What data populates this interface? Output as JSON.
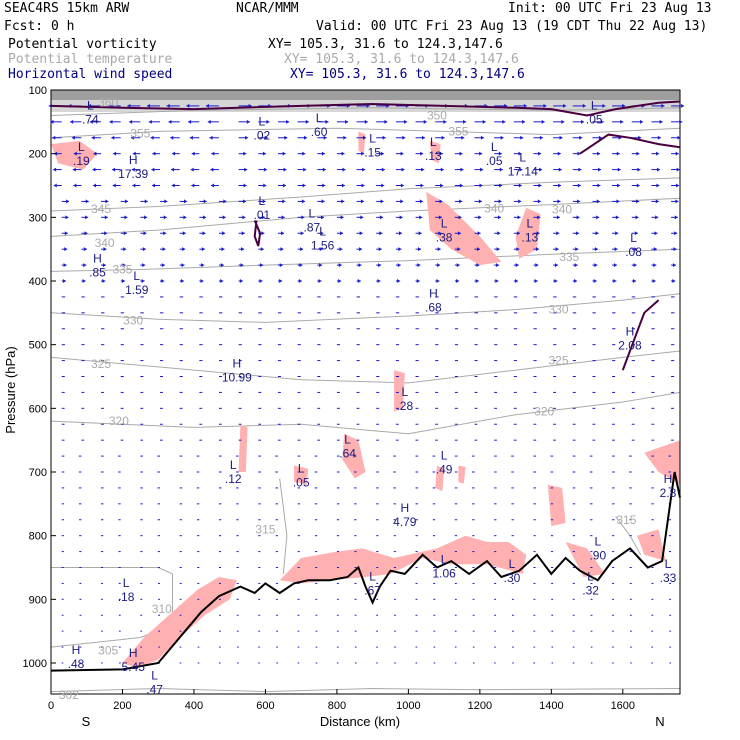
{
  "header": {
    "model": "SEAC4RS 15km ARW",
    "org": "NCAR/MMM",
    "init": "Init: 00 UTC Fri 23 Aug 13",
    "fcst": "Fcst:    0 h",
    "valid": "Valid: 00 UTC Fri 23 Aug 13 (19 CDT Thu 22 Aug 13)",
    "fields": [
      {
        "name": "Potential vorticity",
        "xy": "XY= 105.3, 31.6 to 124.3,147.6",
        "color": "#000000"
      },
      {
        "name": "Potential temperature",
        "xy": "XY= 105.3, 31.6 to 124.3,147.6",
        "color": "#aaaaaa"
      },
      {
        "name": "Horizontal wind speed",
        "xy": "XY= 105.3, 31.6 to 124.3,147.6",
        "color": "#000080"
      }
    ]
  },
  "colors": {
    "pv": "#4a0040",
    "theta": "#aaaaaa",
    "wind": "#1a1acc",
    "fill": "#ffb0b0",
    "terrain": "#000000",
    "label": "#1a1a80"
  },
  "chart_data": {
    "type": "cross-section",
    "xlabel": "Distance (km)",
    "ylabel": "Pressure (hPa)",
    "xlim": [
      0,
      1760
    ],
    "ylim": [
      1050,
      100
    ],
    "xticks": [
      0,
      200,
      400,
      600,
      800,
      1000,
      1200,
      1400,
      1600
    ],
    "yticks": [
      100,
      200,
      300,
      400,
      500,
      600,
      700,
      800,
      900,
      1000
    ],
    "endpoints": {
      "left": "S",
      "right": "N"
    },
    "grid": false,
    "theta_contours": [
      {
        "label": "355",
        "x": 250,
        "p": 168
      },
      {
        "label": "355",
        "x": 1140,
        "p": 165
      },
      {
        "label": "350",
        "x": 1080,
        "p": 140
      },
      {
        "label": "345",
        "x": 140,
        "p": 287
      },
      {
        "label": "340",
        "x": 1240,
        "p": 286
      },
      {
        "label": "340",
        "x": 1430,
        "p": 288
      },
      {
        "label": "335",
        "x": 200,
        "p": 382
      },
      {
        "label": "335",
        "x": 1450,
        "p": 362
      },
      {
        "label": "330",
        "x": 230,
        "p": 462
      },
      {
        "label": "330",
        "x": 1420,
        "p": 445
      },
      {
        "label": "325",
        "x": 140,
        "p": 530
      },
      {
        "label": "325",
        "x": 1420,
        "p": 525
      },
      {
        "label": "320",
        "x": 190,
        "p": 620
      },
      {
        "label": "320",
        "x": 1380,
        "p": 605
      },
      {
        "label": "315",
        "x": 600,
        "p": 790
      },
      {
        "label": "315",
        "x": 1610,
        "p": 775
      },
      {
        "label": "310",
        "x": 310,
        "p": 915
      },
      {
        "label": "305",
        "x": 160,
        "p": 980
      },
      {
        "label": "302",
        "x": 50,
        "p": 1050
      },
      {
        "label": "360",
        "x": 160,
        "p": 120
      },
      {
        "label": "340",
        "x": 150,
        "p": 340
      }
    ],
    "extrema": [
      {
        "type": "L",
        "value": ".74",
        "x": 110,
        "p": 140
      },
      {
        "type": "L",
        "value": ".19",
        "x": 85,
        "p": 205
      },
      {
        "type": "H",
        "value": "17.39",
        "x": 230,
        "p": 226
      },
      {
        "type": "L",
        "value": ".02",
        "x": 590,
        "p": 165
      },
      {
        "type": "L",
        "value": ".60",
        "x": 750,
        "p": 160
      },
      {
        "type": "L",
        "value": ".15",
        "x": 900,
        "p": 192
      },
      {
        "type": "L",
        "value": ".13",
        "x": 1070,
        "p": 197
      },
      {
        "type": "L",
        "value": ".05",
        "x": 1240,
        "p": 205
      },
      {
        "type": "L",
        "value": "17.14",
        "x": 1320,
        "p": 222
      },
      {
        "type": "L",
        "value": ".05",
        "x": 1520,
        "p": 140
      },
      {
        "type": "L",
        "value": ".01",
        "x": 590,
        "p": 290
      },
      {
        "type": "L",
        "value": ".87",
        "x": 730,
        "p": 310
      },
      {
        "type": "L",
        "value": "1.56",
        "x": 760,
        "p": 338
      },
      {
        "type": "L",
        "value": ".38",
        "x": 1100,
        "p": 325
      },
      {
        "type": "L",
        "value": ".13",
        "x": 1340,
        "p": 325
      },
      {
        "type": "L",
        "value": ".08",
        "x": 1630,
        "p": 348
      },
      {
        "type": "H",
        "value": ".85",
        "x": 130,
        "p": 380
      },
      {
        "type": "L",
        "value": "1.59",
        "x": 240,
        "p": 408
      },
      {
        "type": "H",
        "value": ".68",
        "x": 1070,
        "p": 435
      },
      {
        "type": "H",
        "value": "2.08",
        "x": 1620,
        "p": 495
      },
      {
        "type": "H",
        "value": "10.99",
        "x": 520,
        "p": 545
      },
      {
        "type": "L",
        "value": ".28",
        "x": 990,
        "p": 590
      },
      {
        "type": "L",
        "value": ".64",
        "x": 830,
        "p": 665
      },
      {
        "type": "L",
        "value": ".49",
        "x": 1100,
        "p": 690
      },
      {
        "type": "L",
        "value": ".12",
        "x": 510,
        "p": 705
      },
      {
        "type": "L",
        "value": ".05",
        "x": 700,
        "p": 710
      },
      {
        "type": "H",
        "value": "4.79",
        "x": 990,
        "p": 772
      },
      {
        "type": "H",
        "value": "2.8",
        "x": 1760,
        "p": 727
      },
      {
        "type": "L",
        "value": ".90",
        "x": 1530,
        "p": 825
      },
      {
        "type": "L",
        "value": "1.06",
        "x": 1100,
        "p": 853
      },
      {
        "type": "L",
        "value": ".30",
        "x": 1290,
        "p": 860
      },
      {
        "type": "L",
        "value": ".33",
        "x": 1740,
        "p": 860
      },
      {
        "type": "L",
        "value": ".18",
        "x": 210,
        "p": 890
      },
      {
        "type": "L",
        "value": ".67",
        "x": 900,
        "p": 880
      },
      {
        "type": "L",
        "value": ".32",
        "x": 1510,
        "p": 880
      },
      {
        "type": "H",
        "value": ".48",
        "x": 70,
        "p": 995
      },
      {
        "type": "H",
        "value": "5.45",
        "x": 230,
        "p": 1000
      },
      {
        "type": "L",
        "value": ".47",
        "x": 290,
        "p": 1035
      }
    ],
    "terrain": [
      {
        "x": 0,
        "p": 1012
      },
      {
        "x": 200,
        "p": 1010
      },
      {
        "x": 300,
        "p": 1000
      },
      {
        "x": 360,
        "p": 960
      },
      {
        "x": 420,
        "p": 920
      },
      {
        "x": 470,
        "p": 895
      },
      {
        "x": 530,
        "p": 880
      },
      {
        "x": 570,
        "p": 890
      },
      {
        "x": 600,
        "p": 875
      },
      {
        "x": 640,
        "p": 890
      },
      {
        "x": 680,
        "p": 875
      },
      {
        "x": 720,
        "p": 870
      },
      {
        "x": 780,
        "p": 870
      },
      {
        "x": 830,
        "p": 865
      },
      {
        "x": 860,
        "p": 850
      },
      {
        "x": 880,
        "p": 880
      },
      {
        "x": 900,
        "p": 905
      },
      {
        "x": 920,
        "p": 880
      },
      {
        "x": 950,
        "p": 855
      },
      {
        "x": 990,
        "p": 860
      },
      {
        "x": 1040,
        "p": 830
      },
      {
        "x": 1080,
        "p": 850
      },
      {
        "x": 1120,
        "p": 840
      },
      {
        "x": 1170,
        "p": 860
      },
      {
        "x": 1220,
        "p": 840
      },
      {
        "x": 1260,
        "p": 865
      },
      {
        "x": 1310,
        "p": 855
      },
      {
        "x": 1360,
        "p": 830
      },
      {
        "x": 1400,
        "p": 860
      },
      {
        "x": 1440,
        "p": 835
      },
      {
        "x": 1480,
        "p": 855
      },
      {
        "x": 1530,
        "p": 870
      },
      {
        "x": 1570,
        "p": 840
      },
      {
        "x": 1620,
        "p": 820
      },
      {
        "x": 1670,
        "p": 850
      },
      {
        "x": 1710,
        "p": 840
      },
      {
        "x": 1745,
        "p": 700
      },
      {
        "x": 1760,
        "p": 740
      }
    ],
    "pv_fill_regions": [
      [
        {
          "x": 0,
          "p": 185
        },
        {
          "x": 80,
          "p": 180
        },
        {
          "x": 130,
          "p": 200
        },
        {
          "x": 90,
          "p": 225
        },
        {
          "x": 20,
          "p": 215
        }
      ],
      [
        {
          "x": 1050,
          "p": 260
        },
        {
          "x": 1110,
          "p": 280
        },
        {
          "x": 1200,
          "p": 330
        },
        {
          "x": 1260,
          "p": 370
        },
        {
          "x": 1200,
          "p": 375
        },
        {
          "x": 1120,
          "p": 350
        },
        {
          "x": 1060,
          "p": 320
        }
      ],
      [
        {
          "x": 1330,
          "p": 285
        },
        {
          "x": 1370,
          "p": 295
        },
        {
          "x": 1360,
          "p": 350
        },
        {
          "x": 1310,
          "p": 365
        },
        {
          "x": 1300,
          "p": 330
        }
      ],
      [
        {
          "x": 860,
          "p": 165
        },
        {
          "x": 880,
          "p": 170
        },
        {
          "x": 875,
          "p": 200
        },
        {
          "x": 860,
          "p": 195
        }
      ],
      [
        {
          "x": 1060,
          "p": 180
        },
        {
          "x": 1090,
          "p": 185
        },
        {
          "x": 1085,
          "p": 215
        },
        {
          "x": 1065,
          "p": 210
        }
      ],
      [
        {
          "x": 960,
          "p": 540
        },
        {
          "x": 990,
          "p": 545
        },
        {
          "x": 985,
          "p": 600
        },
        {
          "x": 960,
          "p": 605
        }
      ],
      [
        {
          "x": 820,
          "p": 640
        },
        {
          "x": 860,
          "p": 650
        },
        {
          "x": 880,
          "p": 700
        },
        {
          "x": 850,
          "p": 710
        },
        {
          "x": 815,
          "p": 680
        }
      ],
      [
        {
          "x": 530,
          "p": 625
        },
        {
          "x": 550,
          "p": 630
        },
        {
          "x": 545,
          "p": 700
        },
        {
          "x": 525,
          "p": 700
        }
      ],
      [
        {
          "x": 680,
          "p": 690
        },
        {
          "x": 720,
          "p": 695
        },
        {
          "x": 715,
          "p": 720
        },
        {
          "x": 680,
          "p": 715
        }
      ],
      [
        {
          "x": 1080,
          "p": 690
        },
        {
          "x": 1100,
          "p": 695
        },
        {
          "x": 1095,
          "p": 730
        },
        {
          "x": 1075,
          "p": 725
        }
      ],
      [
        {
          "x": 1140,
          "p": 690
        },
        {
          "x": 1160,
          "p": 692
        },
        {
          "x": 1155,
          "p": 718
        },
        {
          "x": 1140,
          "p": 716
        }
      ],
      [
        {
          "x": 1390,
          "p": 720
        },
        {
          "x": 1430,
          "p": 725
        },
        {
          "x": 1440,
          "p": 780
        },
        {
          "x": 1400,
          "p": 785
        }
      ],
      [
        {
          "x": 1660,
          "p": 670
        },
        {
          "x": 1760,
          "p": 650
        },
        {
          "x": 1760,
          "p": 720
        },
        {
          "x": 1700,
          "p": 700
        }
      ],
      [
        {
          "x": 640,
          "p": 870
        },
        {
          "x": 700,
          "p": 835
        },
        {
          "x": 800,
          "p": 825
        },
        {
          "x": 870,
          "p": 820
        },
        {
          "x": 960,
          "p": 835
        },
        {
          "x": 1080,
          "p": 820
        },
        {
          "x": 1160,
          "p": 800
        },
        {
          "x": 1220,
          "p": 810
        },
        {
          "x": 1280,
          "p": 810
        },
        {
          "x": 1330,
          "p": 830
        },
        {
          "x": 1320,
          "p": 860
        },
        {
          "x": 1220,
          "p": 845
        },
        {
          "x": 1120,
          "p": 845
        },
        {
          "x": 1040,
          "p": 835
        },
        {
          "x": 950,
          "p": 860
        },
        {
          "x": 880,
          "p": 865
        },
        {
          "x": 780,
          "p": 870
        },
        {
          "x": 700,
          "p": 875
        }
      ],
      [
        {
          "x": 200,
          "p": 1000
        },
        {
          "x": 260,
          "p": 960
        },
        {
          "x": 330,
          "p": 925
        },
        {
          "x": 410,
          "p": 885
        },
        {
          "x": 470,
          "p": 865
        },
        {
          "x": 520,
          "p": 870
        },
        {
          "x": 500,
          "p": 900
        },
        {
          "x": 430,
          "p": 925
        },
        {
          "x": 360,
          "p": 960
        },
        {
          "x": 300,
          "p": 995
        },
        {
          "x": 240,
          "p": 1008
        }
      ],
      [
        {
          "x": 1440,
          "p": 810
        },
        {
          "x": 1500,
          "p": 820
        },
        {
          "x": 1550,
          "p": 860
        },
        {
          "x": 1490,
          "p": 865
        }
      ],
      [
        {
          "x": 1640,
          "p": 800
        },
        {
          "x": 1700,
          "p": 790
        },
        {
          "x": 1720,
          "p": 840
        },
        {
          "x": 1660,
          "p": 830
        }
      ]
    ]
  }
}
